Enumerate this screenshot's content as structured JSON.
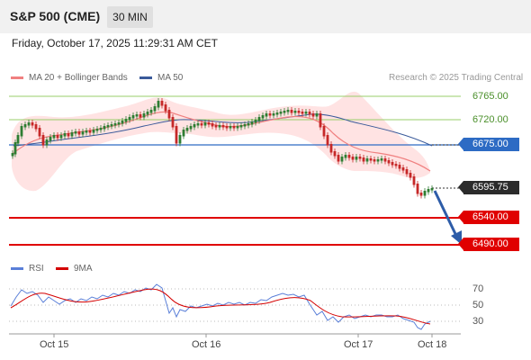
{
  "header": {
    "symbol": "S&P 500 (CME)",
    "interval": "30 MIN",
    "datetime": "Friday, October 17, 2025 11:29:31 AM CET"
  },
  "legend": {
    "bollinger": "MA 20 + Bollinger Bands",
    "ma50": "MA 50",
    "copyright": "Research © 2025 Trading Central",
    "rsi": "RSI",
    "rsi_ma": "9MA"
  },
  "levels": {
    "r2": "6765.00",
    "r1": "6720.00",
    "pivot": "6675.00",
    "last": "6595.75",
    "s1": "6540.00",
    "s2": "6490.00"
  },
  "rsi_scale": [
    "70",
    "50",
    "30"
  ],
  "x_axis": [
    "Oct 15",
    "Oct 16",
    "Oct 17",
    "Oct 18"
  ],
  "colors": {
    "bull_candle": "#2e7d32",
    "bear_candle": "#c62828",
    "resistance_line": "#9acd6a",
    "pivot_line": "#2d6bc4",
    "support_line": "#e00000",
    "bollinger_fill": "#ffd6d6",
    "ma20": "#f08080",
    "ma50": "#3a5a9a",
    "rsi": "#5a7fd8",
    "rsi_ma": "#d40000",
    "arrow": "#2d5ca8"
  }
}
